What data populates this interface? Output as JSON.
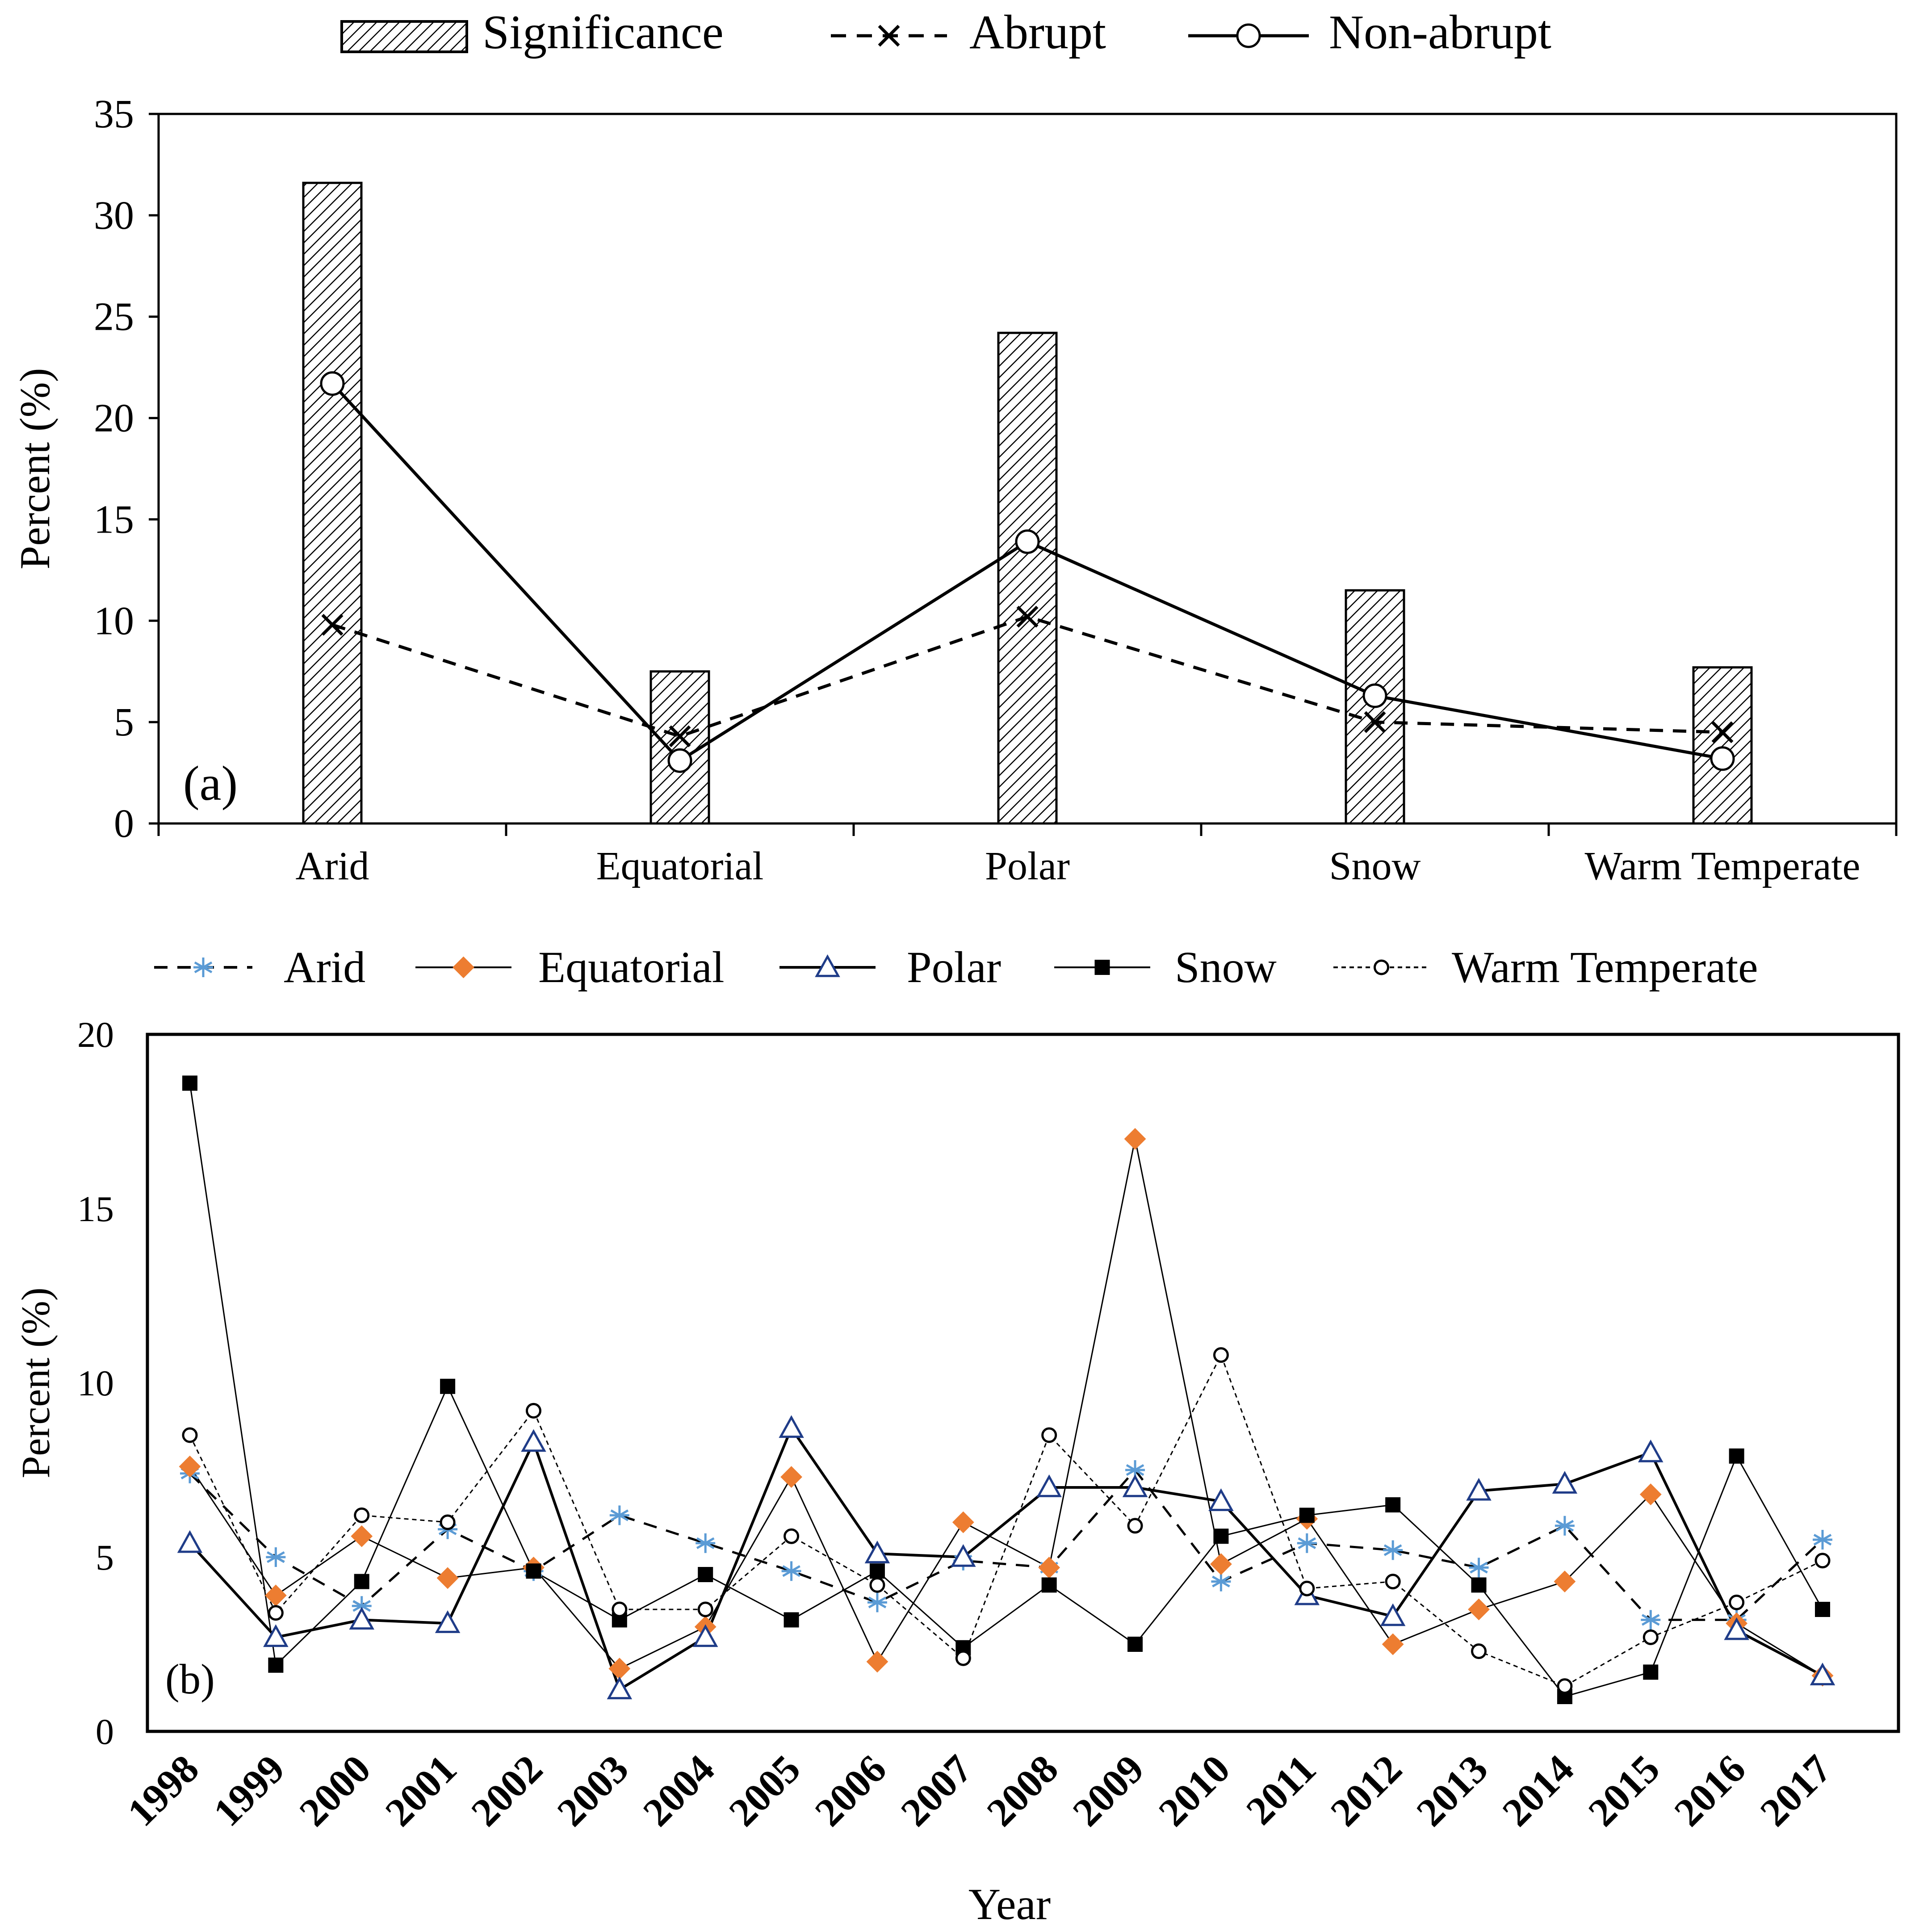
{
  "chart_data": [
    {
      "panel": "(a)",
      "type": "bar+line",
      "ylabel": "Percent  (%)",
      "ylim": [
        0,
        35
      ],
      "yticks": [
        "0",
        "5",
        "10",
        "15",
        "20",
        "25",
        "30",
        "35"
      ],
      "categories": [
        "Arid",
        "Equatorial",
        "Polar",
        "Snow",
        "Warm Temperate"
      ],
      "legend": [
        "Significance",
        "Abrupt",
        "Non-abrupt"
      ],
      "series": [
        {
          "name": "Significance",
          "type": "bar",
          "values": [
            31.6,
            7.5,
            24.2,
            11.5,
            7.7
          ]
        },
        {
          "name": "Abrupt",
          "type": "line",
          "style": "dashed",
          "marker": "x",
          "values": [
            9.8,
            4.3,
            10.2,
            5.0,
            4.5
          ]
        },
        {
          "name": "Non-abrupt",
          "type": "line",
          "style": "solid",
          "marker": "open-circle",
          "values": [
            21.7,
            3.1,
            13.9,
            6.3,
            3.2
          ]
        }
      ]
    },
    {
      "panel": "(b)",
      "type": "line",
      "xlabel": "Year",
      "ylabel": "Percent (%)",
      "ylim": [
        0,
        20
      ],
      "yticks": [
        "0",
        "5",
        "10",
        "15",
        "20"
      ],
      "categories": [
        "1998",
        "1999",
        "2000",
        "2001",
        "2002",
        "2003",
        "2004",
        "2005",
        "2006",
        "2007",
        "2008",
        "2009",
        "2010",
        "2011",
        "2012",
        "2013",
        "2014",
        "2015",
        "2016",
        "2017"
      ],
      "legend": [
        "Arid",
        "Equatorial",
        "Polar",
        "Snow",
        "Warm Temperate"
      ],
      "series": [
        {
          "name": "Arid",
          "marker": "asterisk",
          "color": "#5b9bd5",
          "values": [
            7.4,
            5.0,
            3.6,
            5.8,
            4.6,
            6.2,
            5.4,
            4.6,
            3.7,
            4.9,
            4.7,
            7.5,
            4.3,
            5.4,
            5.2,
            4.7,
            5.9,
            3.2,
            3.2,
            5.5
          ]
        },
        {
          "name": "Equatorial",
          "marker": "diamond",
          "color": "#ed7d31",
          "values": [
            7.6,
            3.9,
            5.6,
            4.4,
            4.7,
            1.8,
            3.0,
            7.3,
            2.0,
            6.0,
            4.7,
            17.0,
            4.8,
            6.1,
            2.5,
            3.5,
            4.3,
            6.8,
            3.1,
            1.6
          ]
        },
        {
          "name": "Polar",
          "marker": "open-triangle",
          "color": "#1f3c88",
          "values": [
            5.4,
            2.7,
            3.2,
            3.1,
            8.3,
            1.2,
            2.7,
            8.7,
            5.1,
            5.0,
            7.0,
            7.0,
            6.6,
            3.9,
            3.3,
            6.9,
            7.1,
            8.0,
            2.9,
            1.6
          ]
        },
        {
          "name": "Snow",
          "marker": "square",
          "color": "#000000",
          "values": [
            18.6,
            1.9,
            4.3,
            9.9,
            4.6,
            3.2,
            4.5,
            3.2,
            4.6,
            2.4,
            4.2,
            2.5,
            5.6,
            6.2,
            6.5,
            4.2,
            1.0,
            1.7,
            7.9,
            3.5
          ]
        },
        {
          "name": "Warm Temperate",
          "marker": "open-circle-small",
          "color": "#000000",
          "values": [
            8.5,
            3.4,
            6.2,
            6.0,
            9.2,
            3.5,
            3.5,
            5.6,
            4.2,
            2.1,
            8.5,
            5.9,
            10.8,
            4.1,
            4.3,
            2.3,
            1.3,
            2.7,
            3.7,
            4.9
          ]
        }
      ]
    }
  ],
  "labels": {
    "a_panel": "(a)",
    "b_panel": "(b)"
  }
}
